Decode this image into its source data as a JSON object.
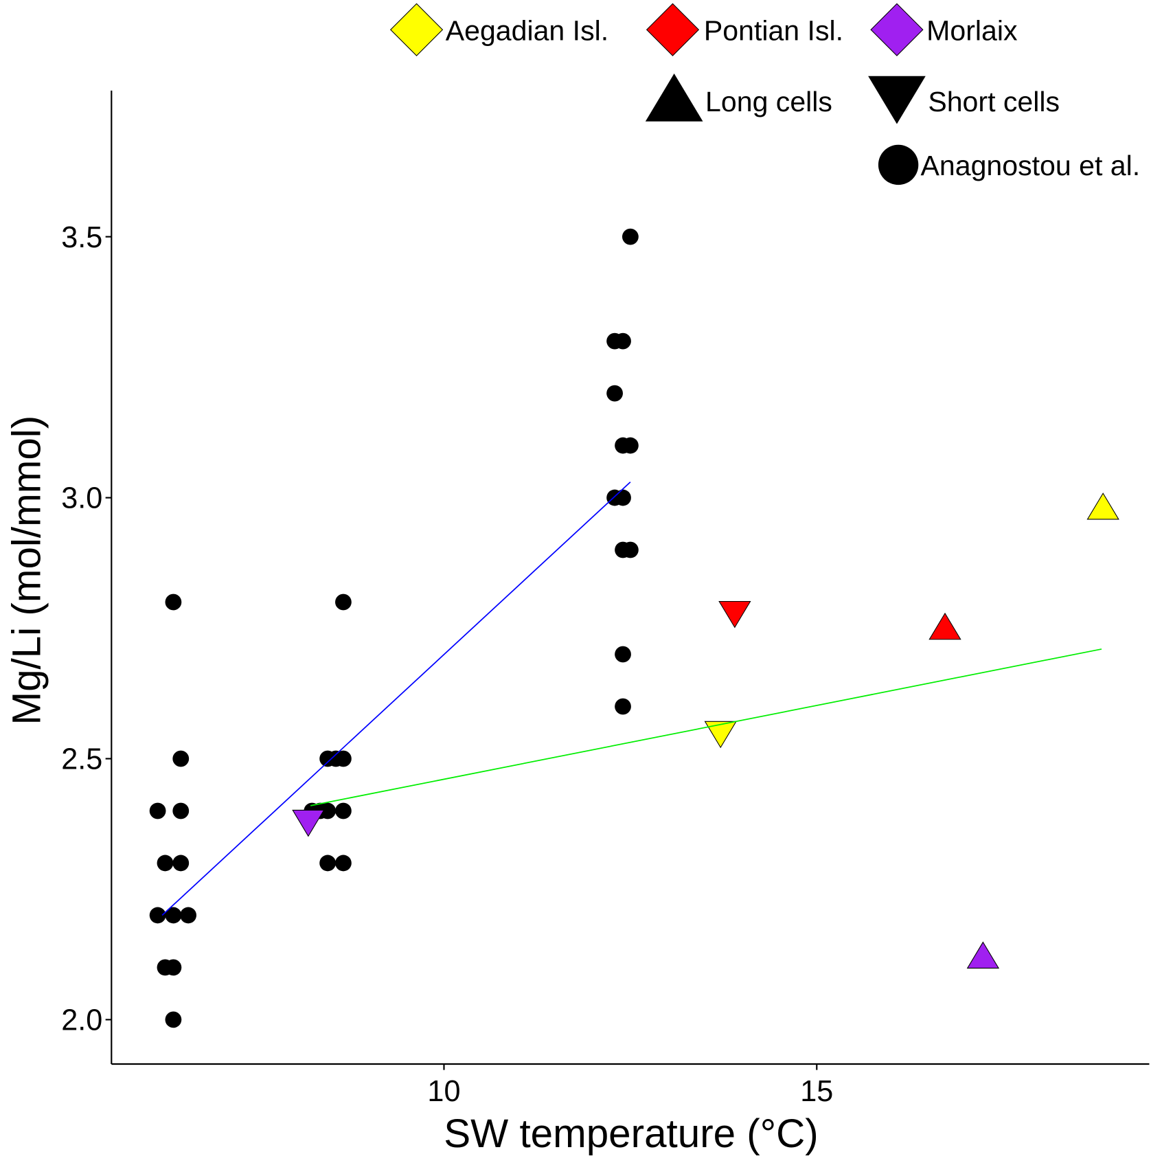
{
  "chart_data": {
    "type": "scatter",
    "xlabel": "SW temperature (°C)",
    "ylabel": "Mg/Li (mol/mmol)",
    "xlim": [
      5.54,
      19.46
    ],
    "ylim": [
      1.915,
      3.78
    ],
    "xticks": [
      10,
      15
    ],
    "yticks": [
      2.0,
      2.5,
      3.0,
      3.5
    ],
    "ytick_labels": [
      "2.0",
      "2.5",
      "3.0",
      "3.5"
    ],
    "grid": false,
    "legend_position": "top-right",
    "legend": {
      "colors": [
        {
          "label": "Aegadian Isl.",
          "color": "#ffff00",
          "shape": "diamond"
        },
        {
          "label": "Pontian Isl.",
          "color": "#ff0000",
          "shape": "diamond"
        },
        {
          "label": "Morlaix",
          "color": "#a020f0",
          "shape": "diamond"
        }
      ],
      "shapes": [
        {
          "label": "Long cells",
          "shape": "triangle-up"
        },
        {
          "label": "Short cells",
          "shape": "triangle-down"
        },
        {
          "label": "Anagnostou et al.",
          "shape": "circle"
        }
      ]
    },
    "series": [
      {
        "name": "Anagnostou et al.",
        "marker": "circle",
        "color": "#000000",
        "points": [
          [
            6.37,
            2.8
          ],
          [
            6.47,
            2.5
          ],
          [
            6.16,
            2.4
          ],
          [
            6.47,
            2.4
          ],
          [
            6.26,
            2.3
          ],
          [
            6.47,
            2.3
          ],
          [
            6.16,
            2.2
          ],
          [
            6.37,
            2.2
          ],
          [
            6.57,
            2.2
          ],
          [
            6.26,
            2.1
          ],
          [
            6.37,
            2.1
          ],
          [
            6.37,
            2.0
          ],
          [
            8.65,
            2.8
          ],
          [
            8.44,
            2.5
          ],
          [
            8.55,
            2.5
          ],
          [
            8.65,
            2.5
          ],
          [
            8.23,
            2.4
          ],
          [
            8.34,
            2.4
          ],
          [
            8.44,
            2.4
          ],
          [
            8.65,
            2.4
          ],
          [
            8.44,
            2.3
          ],
          [
            8.65,
            2.3
          ],
          [
            12.5,
            3.5
          ],
          [
            12.29,
            3.3
          ],
          [
            12.4,
            3.3
          ],
          [
            12.29,
            3.2
          ],
          [
            12.4,
            3.1
          ],
          [
            12.5,
            3.1
          ],
          [
            12.29,
            3.0
          ],
          [
            12.4,
            3.0
          ],
          [
            12.4,
            2.9
          ],
          [
            12.5,
            2.9
          ],
          [
            12.4,
            2.7
          ],
          [
            12.4,
            2.6
          ]
        ]
      },
      {
        "name": "Morlaix",
        "marker": "triangle-down",
        "color": "#a020f0",
        "points": [
          [
            8.18,
            2.38
          ]
        ]
      },
      {
        "name": "Aegadian Isl.",
        "marker": "triangle-down",
        "color": "#ffff00",
        "points": [
          [
            13.71,
            2.55
          ]
        ]
      },
      {
        "name": "Pontian Isl.",
        "marker": "triangle-down",
        "color": "#ff0000",
        "points": [
          [
            13.9,
            2.78
          ]
        ]
      },
      {
        "name": "Pontian Isl.",
        "marker": "triangle-up",
        "color": "#ff0000",
        "points": [
          [
            16.72,
            2.75
          ]
        ]
      },
      {
        "name": "Aegadian Isl.",
        "marker": "triangle-up",
        "color": "#ffff00",
        "points": [
          [
            18.84,
            2.98
          ]
        ]
      },
      {
        "name": "Morlaix",
        "marker": "triangle-up",
        "color": "#a020f0",
        "points": [
          [
            17.23,
            2.12
          ]
        ]
      }
    ],
    "fit_lines": [
      {
        "color": "#0000ff",
        "from": [
          6.22,
          2.2
        ],
        "to": [
          12.5,
          3.03
        ]
      },
      {
        "color": "#00ee00",
        "from": [
          8.21,
          2.41
        ],
        "to": [
          18.82,
          2.71
        ]
      }
    ]
  }
}
